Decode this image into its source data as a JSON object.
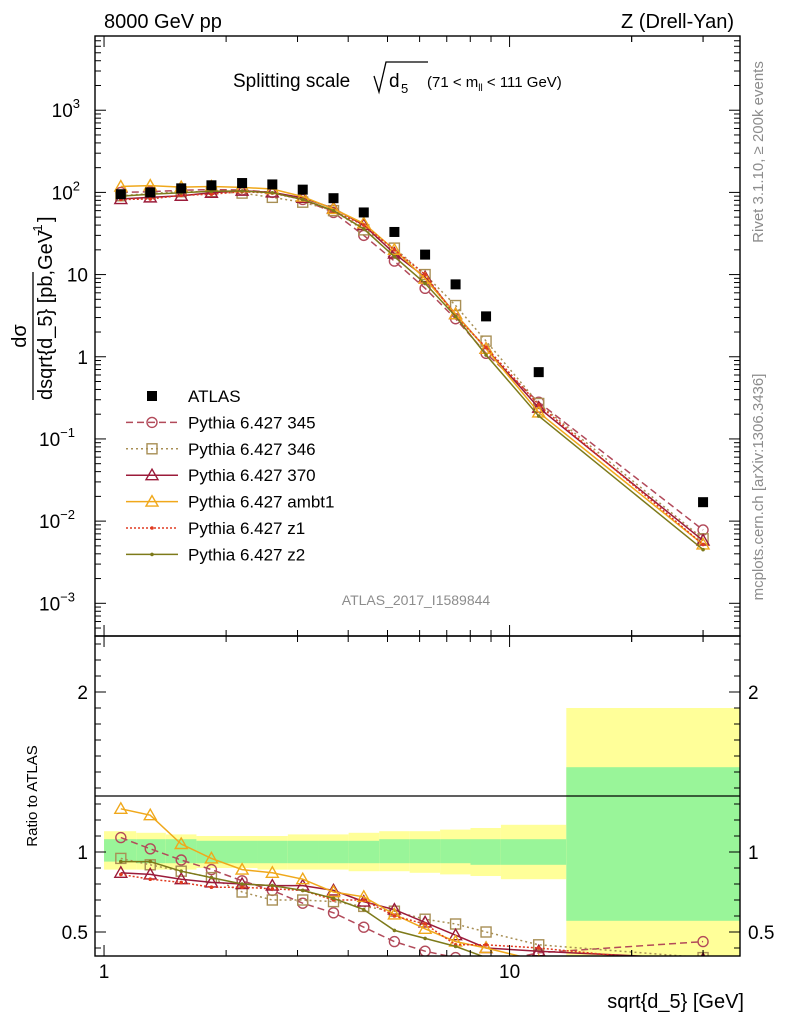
{
  "header": {
    "left": "8000 GeV pp",
    "right": "Z (Drell-Yan)"
  },
  "side_labels": {
    "rivet": "Rivet 3.1.10, ≥ 200k events",
    "mcplots": "mcplots.cern.ch [arXiv:1306.3436]"
  },
  "analysis_id": "ATLAS_2017_I1589844",
  "chart_data": [
    {
      "type": "line",
      "title": "Splitting scale √d5 (71 < m_ll < 111 GeV)",
      "title_parts": {
        "main": "Splitting scale",
        "sym": "d",
        "sub": "5",
        "range_pre": "(71 < m",
        "range_sub": "ll",
        "range_post": " < 111 GeV)"
      },
      "ylabel": "dσ / dsqrt{d_5} [pb,GeV⁻¹]",
      "ylabel_parts": {
        "num": "dσ",
        "den": "dsqrt{d_5} [pb,GeV",
        "exp": "-1",
        "close": "]"
      },
      "xlabel": "sqrt{d_5} [GeV]",
      "x_scale": "log",
      "y_scale": "log",
      "xlim": [
        0.95,
        37
      ],
      "ylim": [
        0.0004,
        8000
      ],
      "x_ticks": [
        {
          "value": 1,
          "label": "1"
        },
        {
          "value": 10,
          "label": "10"
        }
      ],
      "y_ticks": [
        {
          "value": 0.001,
          "base": "10",
          "exp": "−3"
        },
        {
          "value": 0.01,
          "base": "10",
          "exp": "−2"
        },
        {
          "value": 0.1,
          "base": "10",
          "exp": "−1"
        },
        {
          "value": 1,
          "base": "1",
          "exp": ""
        },
        {
          "value": 10,
          "base": "10",
          "exp": ""
        },
        {
          "value": 100,
          "base": "10",
          "exp": "2"
        },
        {
          "value": 1000,
          "base": "10",
          "exp": "3"
        }
      ],
      "legend_position": "middle-left",
      "series": [
        {
          "name": "ATLAS",
          "color": "#000000",
          "marker": "square",
          "x": [
            1.1,
            1.3,
            1.55,
            1.84,
            2.19,
            2.6,
            3.09,
            3.68,
            4.37,
            5.2,
            6.19,
            7.36,
            8.75,
            11.8,
            30.0
          ],
          "y": [
            95,
            100,
            112,
            122,
            130,
            125,
            108,
            85,
            57,
            33,
            17.5,
            7.6,
            3.1,
            0.65,
            0.017
          ]
        },
        {
          "name": "Pythia 6.427 345",
          "color": "#b24a5a",
          "marker": "circle",
          "dash": "7,4",
          "x": [
            1.1,
            1.3,
            1.55,
            1.84,
            2.19,
            2.6,
            3.09,
            3.68,
            4.37,
            5.2,
            6.19,
            7.36,
            8.75,
            11.8,
            30.0
          ],
          "y": [
            100,
            102,
            106,
            108,
            107,
            100,
            82,
            57,
            30,
            14.6,
            6.8,
            2.9,
            1.1,
            0.28,
            0.0078
          ]
        },
        {
          "name": "Pythia 6.427 346",
          "color": "#a88f55",
          "marker": "square-open",
          "dash": "2,3",
          "x": [
            1.1,
            1.3,
            1.55,
            1.84,
            2.19,
            2.6,
            3.09,
            3.68,
            4.37,
            5.2,
            6.19,
            7.36,
            8.75,
            11.8,
            30.0
          ],
          "y": [
            91,
            97,
            102,
            102,
            98,
            87,
            76,
            60,
            35,
            21,
            10,
            4.2,
            1.55,
            0.27,
            0.0061
          ]
        },
        {
          "name": "Pythia 6.427 370",
          "color": "#9b1b3a",
          "marker": "triangle",
          "dash": "",
          "x": [
            1.1,
            1.3,
            1.55,
            1.84,
            2.19,
            2.6,
            3.09,
            3.68,
            4.37,
            5.2,
            6.19,
            7.36,
            8.75,
            11.8,
            30.0
          ],
          "y": [
            83,
            87,
            91,
            99,
            105,
            100,
            86,
            64,
            40,
            18,
            9.3,
            3.3,
            1.25,
            0.24,
            0.0058
          ]
        },
        {
          "name": "Pythia 6.427 ambt1",
          "color": "#f0a81b",
          "marker": "triangle",
          "dash": "",
          "x": [
            1.1,
            1.3,
            1.55,
            1.84,
            2.19,
            2.6,
            3.09,
            3.68,
            4.37,
            5.2,
            6.19,
            7.36,
            8.75,
            11.8,
            30.0
          ],
          "y": [
            118,
            121,
            116,
            118,
            115,
            110,
            89,
            63,
            42,
            20,
            8.9,
            3.3,
            1.25,
            0.21,
            0.0052
          ]
        },
        {
          "name": "Pythia 6.427 z1",
          "color": "#e03a20",
          "marker": "dot",
          "dash": "2,2",
          "x": [
            1.1,
            1.3,
            1.55,
            1.84,
            2.19,
            2.6,
            3.09,
            3.68,
            4.37,
            5.2,
            6.19,
            7.36,
            8.75,
            11.8,
            30.0
          ],
          "y": [
            82,
            83,
            92,
            95,
            102,
            98,
            82,
            59,
            40,
            20,
            10,
            3.1,
            1.3,
            0.26,
            0.0052
          ]
        },
        {
          "name": "Pythia 6.427 z2",
          "color": "#7d7a1a",
          "marker": "dot",
          "dash": "",
          "x": [
            1.1,
            1.3,
            1.55,
            1.84,
            2.19,
            2.6,
            3.09,
            3.68,
            4.37,
            5.2,
            6.19,
            7.36,
            8.75,
            11.8,
            30.0
          ],
          "y": [
            90,
            95,
            99,
            103,
            104,
            99,
            82,
            60,
            36,
            16.5,
            7.8,
            3.1,
            1.05,
            0.19,
            0.0045
          ]
        }
      ]
    },
    {
      "type": "line",
      "ylabel": "Ratio to ATLAS",
      "xlabel": "sqrt{d_5} [GeV]",
      "x_scale": "log",
      "xlim": [
        0.95,
        37
      ],
      "ylim": [
        0.35,
        2.35
      ],
      "y_ticks": [
        {
          "value": 0.5,
          "label": "0.5"
        },
        {
          "value": 1,
          "label": "1"
        },
        {
          "value": 2,
          "label": "2"
        }
      ],
      "reference_line": 1,
      "uncertainty_bands": {
        "edges": [
          1.0,
          1.2,
          1.42,
          1.69,
          2.01,
          2.39,
          2.84,
          3.37,
          4.01,
          4.77,
          5.67,
          6.74,
          8.01,
          9.52,
          13.8,
          37
        ],
        "stat_syst": [
          [
            0.94,
            1.08
          ],
          [
            0.93,
            1.08
          ],
          [
            0.93,
            1.08
          ],
          [
            0.93,
            1.07
          ],
          [
            0.93,
            1.07
          ],
          [
            0.93,
            1.07
          ],
          [
            0.93,
            1.07
          ],
          [
            0.93,
            1.07
          ],
          [
            0.93,
            1.07
          ],
          [
            0.93,
            1.08
          ],
          [
            0.93,
            1.08
          ],
          [
            0.93,
            1.08
          ],
          [
            0.92,
            1.08
          ],
          [
            0.92,
            1.08
          ],
          [
            0.57,
            1.53
          ]
        ],
        "total": [
          [
            0.89,
            1.13
          ],
          [
            0.89,
            1.12
          ],
          [
            0.89,
            1.11
          ],
          [
            0.9,
            1.1
          ],
          [
            0.9,
            1.1
          ],
          [
            0.89,
            1.1
          ],
          [
            0.89,
            1.11
          ],
          [
            0.89,
            1.11
          ],
          [
            0.88,
            1.12
          ],
          [
            0.88,
            1.13
          ],
          [
            0.87,
            1.13
          ],
          [
            0.86,
            1.14
          ],
          [
            0.85,
            1.15
          ],
          [
            0.83,
            1.17
          ],
          [
            0.35,
            1.9
          ]
        ],
        "stat_syst_color": "#99f599",
        "total_color": "#ffff99"
      },
      "series": [
        {
          "name": "Pythia 6.427 345",
          "y": [
            1.09,
            1.02,
            0.95,
            0.89,
            0.82,
            0.76,
            0.68,
            0.62,
            0.53,
            0.44,
            0.38,
            0.34,
            0.3,
            0.37,
            0.44
          ]
        },
        {
          "name": "Pythia 6.427 346",
          "y": [
            0.96,
            0.92,
            0.88,
            0.84,
            0.75,
            0.7,
            0.7,
            0.69,
            0.66,
            0.63,
            0.58,
            0.55,
            0.5,
            0.42,
            0.34
          ]
        },
        {
          "name": "Pythia 6.427 370",
          "y": [
            0.87,
            0.86,
            0.83,
            0.81,
            0.8,
            0.79,
            0.79,
            0.76,
            0.69,
            0.64,
            0.56,
            0.48,
            0.4,
            0.38,
            0.33
          ]
        },
        {
          "name": "Pythia 6.427 ambt1",
          "y": [
            1.27,
            1.23,
            1.05,
            0.96,
            0.89,
            0.87,
            0.83,
            0.75,
            0.72,
            0.61,
            0.52,
            0.44,
            0.4,
            0.32,
            0.3
          ]
        },
        {
          "name": "Pythia 6.427 z1",
          "y": [
            0.86,
            0.83,
            0.81,
            0.78,
            0.78,
            0.77,
            0.76,
            0.7,
            0.7,
            0.6,
            0.55,
            0.42,
            0.42,
            0.4,
            0.3
          ]
        },
        {
          "name": "Pythia 6.427 z2",
          "y": [
            0.94,
            0.94,
            0.88,
            0.84,
            0.8,
            0.79,
            0.76,
            0.71,
            0.64,
            0.51,
            0.46,
            0.41,
            0.34,
            0.29,
            0.26
          ]
        }
      ]
    }
  ]
}
